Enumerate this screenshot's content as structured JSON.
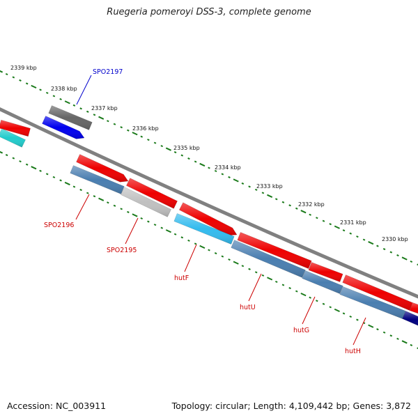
{
  "title": "Ruegeria pomeroyi DSS-3, complete genome",
  "footer": {
    "accession": "Accession: NC_003911",
    "stats": "Topology: circular; Length: 4,109,442 bp; Genes: 3,872"
  },
  "scale_labels": [
    "2339 kbp",
    "2338 kbp",
    "2337 kbp",
    "2336 kbp",
    "2335 kbp",
    "2334 kbp",
    "2333 kbp",
    "2332 kbp",
    "2331 kbp",
    "2330 kbp"
  ],
  "gene_labels": [
    {
      "text": "SPO2197",
      "color": "#0000cc"
    },
    {
      "text": "SPO2196",
      "color": "#cc0000"
    },
    {
      "text": "SPO2195",
      "color": "#cc0000"
    },
    {
      "text": "hutF",
      "color": "#cc0000"
    },
    {
      "text": "hutU",
      "color": "#cc0000"
    },
    {
      "text": "hutG",
      "color": "#cc0000"
    },
    {
      "text": "hutH",
      "color": "#cc0000"
    }
  ],
  "colors": {
    "backbone": "#808080",
    "tick": "#1a7a1a",
    "red_gene": "#ee0000",
    "steelblue_gene": "#4a7eb0",
    "lightgray_gene": "#c0c0c0",
    "cyan_gene": "#33bbee",
    "teal_gene": "#22cccc",
    "darkgray_gene": "#666666",
    "blue_gene": "#0000ee",
    "navy_gene": "#000080"
  }
}
